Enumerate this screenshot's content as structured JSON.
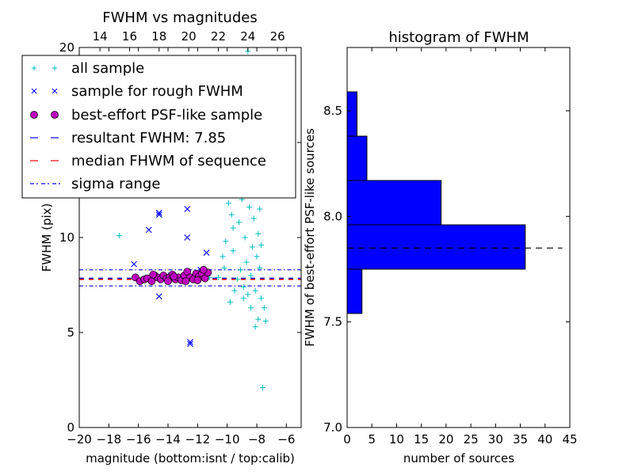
{
  "chart_data": [
    {
      "type": "scatter",
      "title": "FWHM vs magnitudes",
      "xlabel": "magnitude (bottom:isnt / top:calib)",
      "ylabel": "FWHM (pix)",
      "xlim": [
        -20,
        -5
      ],
      "ylim": [
        0,
        20
      ],
      "xticks": [
        "−20",
        "−18",
        "−16",
        "−14",
        "−12",
        "−10",
        "−8",
        "−6"
      ],
      "xtick_values": [
        -20,
        -18,
        -16,
        -14,
        -12,
        -10,
        -8,
        -6
      ],
      "yticks": [
        "0",
        "5",
        "10",
        "15",
        "20"
      ],
      "ytick_values": [
        0,
        5,
        10,
        15,
        20
      ],
      "top_xticks": [
        "14",
        "16",
        "18",
        "20",
        "22",
        "24",
        "26"
      ],
      "top_xtick_values": [
        -18.6,
        -16.6,
        -14.6,
        -12.6,
        -10.6,
        -8.6,
        -6.6
      ],
      "legend_position": "upper-left",
      "series": [
        {
          "name": "all sample",
          "marker": "plus",
          "color": "#00bfbf",
          "points": [
            [
              -17.3,
              10.1
            ],
            [
              -8.6,
              19.8
            ],
            [
              -7.6,
              2.1
            ],
            [
              -9.8,
              6.6
            ],
            [
              -8.4,
              6.3
            ],
            [
              -7.9,
              5.7
            ],
            [
              -7.4,
              5.6
            ],
            [
              -8.1,
              5.3
            ],
            [
              -8.6,
              7.0
            ],
            [
              -10.3,
              9.0
            ],
            [
              -10.1,
              9.8
            ],
            [
              -9.6,
              10.5
            ],
            [
              -9.9,
              11.8
            ],
            [
              -9.4,
              13.5
            ],
            [
              -8.8,
              14.5
            ],
            [
              -8.5,
              15.2
            ],
            [
              -8.2,
              13.8
            ],
            [
              -8.0,
              12.5
            ],
            [
              -7.8,
              11.5
            ],
            [
              -7.9,
              10.2
            ],
            [
              -8.3,
              9.5
            ],
            [
              -8.7,
              8.7
            ],
            [
              -9.1,
              8.3
            ],
            [
              -9.3,
              7.8
            ],
            [
              -8.9,
              7.4
            ],
            [
              -8.1,
              7.2
            ],
            [
              -7.7,
              6.8
            ],
            [
              -8.4,
              8.0
            ],
            [
              -9.6,
              9.3
            ],
            [
              -9.0,
              12.0
            ],
            [
              -8.2,
              11.0
            ],
            [
              -7.6,
              12.6
            ],
            [
              -8.6,
              13.1
            ],
            [
              -9.2,
              10.8
            ],
            [
              -10.6,
              7.9
            ],
            [
              -11.2,
              7.9
            ],
            [
              -8.0,
              9.0
            ],
            [
              -7.7,
              9.6
            ],
            [
              -8.8,
              10.0
            ],
            [
              -9.7,
              11.2
            ],
            [
              -10.0,
              13.2
            ],
            [
              -8.3,
              14.8
            ],
            [
              -8.0,
              16.0
            ],
            [
              -7.9,
              12.9
            ],
            [
              -8.5,
              11.6
            ],
            [
              -7.5,
              6.3
            ],
            [
              -7.8,
              8.4
            ],
            [
              -9.5,
              7.2
            ],
            [
              -10.2,
              8.4
            ],
            [
              -8.9,
              6.8
            ]
          ]
        },
        {
          "name": "sample for rough FWHM",
          "marker": "x",
          "color": "#0000ff",
          "points": [
            [
              -16.3,
              8.6
            ],
            [
              -15.3,
              10.4
            ],
            [
              -14.6,
              11.2
            ],
            [
              -14.6,
              11.3
            ],
            [
              -12.7,
              11.5
            ],
            [
              -12.7,
              10.0
            ],
            [
              -14.6,
              6.9
            ],
            [
              -12.5,
              4.5
            ],
            [
              -12.5,
              4.4
            ],
            [
              -11.4,
              9.2
            ],
            [
              -11.8,
              8.3
            ],
            [
              -15.6,
              7.8
            ],
            [
              -13.8,
              8.0
            ],
            [
              -13.2,
              7.9
            ],
            [
              -12.2,
              7.8
            ]
          ]
        },
        {
          "name": "best-effort PSF-like sample",
          "marker": "circle",
          "color": "#bf00bf",
          "points": [
            [
              -16.2,
              7.9
            ],
            [
              -15.9,
              7.7
            ],
            [
              -15.6,
              7.8
            ],
            [
              -15.4,
              7.85
            ],
            [
              -15.1,
              7.7
            ],
            [
              -14.9,
              8.0
            ],
            [
              -14.7,
              7.9
            ],
            [
              -14.5,
              7.8
            ],
            [
              -14.3,
              8.0
            ],
            [
              -14.1,
              7.85
            ],
            [
              -13.9,
              7.9
            ],
            [
              -13.7,
              8.05
            ],
            [
              -13.5,
              7.8
            ],
            [
              -13.3,
              7.9
            ],
            [
              -13.1,
              7.75
            ],
            [
              -12.9,
              8.0
            ],
            [
              -12.7,
              8.2
            ],
            [
              -12.5,
              7.9
            ],
            [
              -12.3,
              7.8
            ],
            [
              -12.1,
              8.1
            ],
            [
              -11.9,
              7.95
            ],
            [
              -11.7,
              8.1
            ],
            [
              -11.5,
              7.85
            ],
            [
              -11.3,
              8.15
            ],
            [
              -12.8,
              7.7
            ],
            [
              -14.0,
              7.7
            ],
            [
              -15.0,
              8.05
            ],
            [
              -13.6,
              7.95
            ],
            [
              -12.0,
              7.75
            ],
            [
              -11.6,
              8.3
            ]
          ]
        }
      ],
      "lines": [
        {
          "name": "resultant FWHM: 7.85",
          "y": 7.85,
          "style": "dashed",
          "color": "#0000ff"
        },
        {
          "name": "median FHWM of sequence",
          "y": 7.8,
          "style": "dashed",
          "color": "#ff0000"
        },
        {
          "name": "sigma range",
          "y": 8.3,
          "style": "dashdot",
          "color": "#0000ff"
        },
        {
          "name": "",
          "y": 7.45,
          "style": "dashdot",
          "color": "#0000ff"
        }
      ]
    },
    {
      "type": "bar",
      "orientation": "horizontal",
      "title": "histogram of FWHM",
      "xlabel": "number of sources",
      "ylabel": "FWHM of best-effort PSF-like sources",
      "xlim": [
        0,
        45
      ],
      "ylim": [
        7.0,
        8.8
      ],
      "xticks": [
        "0",
        "5",
        "10",
        "15",
        "20",
        "25",
        "30",
        "35",
        "40",
        "45"
      ],
      "xtick_values": [
        0,
        5,
        10,
        15,
        20,
        25,
        30,
        35,
        40,
        45
      ],
      "yticks": [
        "7.0",
        "7.5",
        "8.0",
        "8.5"
      ],
      "ytick_values": [
        7.0,
        7.5,
        8.0,
        8.5
      ],
      "bar_color": "#0000ff",
      "bins": [
        {
          "lo": 7.54,
          "hi": 7.75,
          "count": 3
        },
        {
          "lo": 7.75,
          "hi": 7.96,
          "count": 36
        },
        {
          "lo": 7.96,
          "hi": 8.17,
          "count": 19
        },
        {
          "lo": 8.17,
          "hi": 8.38,
          "count": 4
        },
        {
          "lo": 8.38,
          "hi": 8.59,
          "count": 2
        }
      ],
      "reference_line": {
        "y": 7.85,
        "style": "dashed",
        "color": "#000000"
      }
    }
  ]
}
